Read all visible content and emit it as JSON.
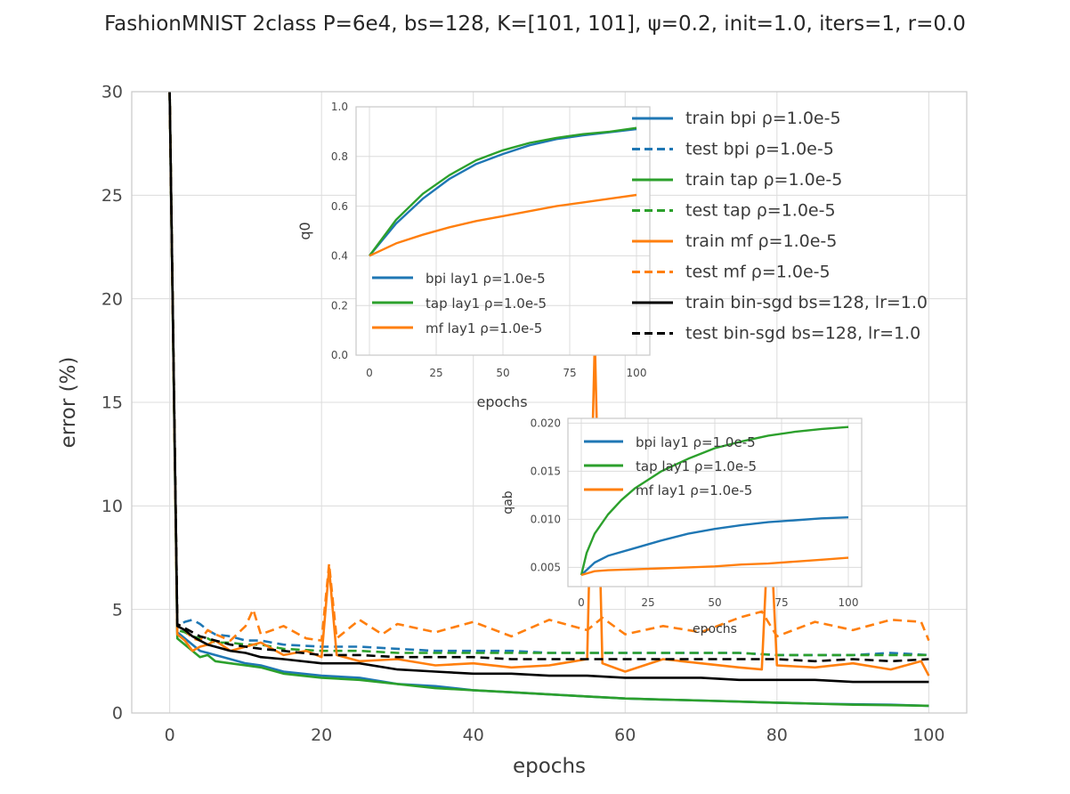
{
  "chart_data": [
    {
      "id": "main",
      "type": "line",
      "title": "FashionMNIST 2class P=6e4, bs=128, K=[101, 101], ψ=0.2, init=1.0, iters=1, r=0.0",
      "xlabel": "epochs",
      "ylabel": "error (%)",
      "xlim": [
        -5,
        105
      ],
      "ylim": [
        0,
        30
      ],
      "xticks": [
        0,
        20,
        40,
        60,
        80,
        100
      ],
      "yticks": [
        0,
        5,
        10,
        15,
        20,
        25,
        30
      ],
      "grid": true,
      "legend_position": "upper right",
      "series": [
        {
          "name": "train bpi ρ=1.0e-5",
          "color": "#1f77b4",
          "style": "solid",
          "x": [
            0,
            1,
            2,
            3,
            4,
            5,
            6,
            8,
            10,
            12,
            15,
            20,
            25,
            30,
            35,
            40,
            45,
            50,
            55,
            60,
            65,
            70,
            75,
            80,
            85,
            90,
            95,
            100
          ],
          "y": [
            30,
            3.9,
            3.6,
            3.3,
            3.0,
            2.9,
            2.8,
            2.6,
            2.4,
            2.3,
            2.0,
            1.8,
            1.7,
            1.4,
            1.3,
            1.1,
            1.0,
            0.9,
            0.8,
            0.7,
            0.65,
            0.6,
            0.55,
            0.5,
            0.45,
            0.42,
            0.4,
            0.35
          ]
        },
        {
          "name": "test bpi ρ=1.0e-5",
          "color": "#1f77b4",
          "style": "dashed",
          "x": [
            0,
            1,
            2,
            3,
            4,
            5,
            6,
            8,
            10,
            12,
            15,
            20,
            25,
            30,
            35,
            40,
            45,
            50,
            55,
            60,
            65,
            70,
            75,
            80,
            85,
            90,
            95,
            100
          ],
          "y": [
            30,
            4.2,
            4.4,
            4.5,
            4.3,
            4.0,
            3.8,
            3.7,
            3.5,
            3.5,
            3.3,
            3.2,
            3.2,
            3.1,
            3.0,
            3.0,
            3.0,
            2.9,
            2.9,
            2.9,
            2.9,
            2.9,
            2.9,
            2.8,
            2.8,
            2.8,
            2.9,
            2.8
          ]
        },
        {
          "name": "train tap ρ=1.0e-5",
          "color": "#2ca02c",
          "style": "solid",
          "x": [
            0,
            1,
            2,
            3,
            4,
            5,
            6,
            8,
            10,
            12,
            15,
            20,
            25,
            30,
            35,
            40,
            45,
            50,
            55,
            60,
            65,
            70,
            75,
            80,
            85,
            90,
            95,
            100
          ],
          "y": [
            30,
            3.6,
            3.3,
            3.0,
            2.7,
            2.8,
            2.5,
            2.4,
            2.3,
            2.2,
            1.9,
            1.7,
            1.6,
            1.4,
            1.2,
            1.1,
            1.0,
            0.9,
            0.8,
            0.7,
            0.65,
            0.6,
            0.55,
            0.5,
            0.45,
            0.4,
            0.38,
            0.35
          ]
        },
        {
          "name": "test tap ρ=1.0e-5",
          "color": "#2ca02c",
          "style": "dashed",
          "x": [
            0,
            1,
            2,
            3,
            4,
            5,
            6,
            8,
            10,
            12,
            15,
            20,
            25,
            30,
            35,
            40,
            45,
            50,
            55,
            60,
            65,
            70,
            75,
            80,
            85,
            90,
            95,
            100
          ],
          "y": [
            30,
            4.0,
            3.9,
            3.7,
            3.6,
            3.6,
            3.4,
            3.4,
            3.3,
            3.3,
            3.1,
            3.0,
            3.0,
            2.9,
            2.9,
            2.9,
            2.9,
            2.9,
            2.9,
            2.9,
            2.9,
            2.9,
            2.9,
            2.8,
            2.8,
            2.8,
            2.8,
            2.8
          ]
        },
        {
          "name": "train mf ρ=1.0e-5",
          "color": "#ff7f0e",
          "style": "solid",
          "x": [
            0,
            1,
            2,
            3,
            4,
            5,
            6,
            8,
            10,
            12,
            15,
            18,
            20,
            21,
            22,
            25,
            30,
            35,
            40,
            45,
            50,
            55,
            56,
            57,
            60,
            65,
            70,
            75,
            78,
            79,
            80,
            85,
            90,
            95,
            99,
            100
          ],
          "y": [
            30,
            3.8,
            3.5,
            3.0,
            3.2,
            3.3,
            3.5,
            3.0,
            3.2,
            3.4,
            2.8,
            3.0,
            2.7,
            7.0,
            2.8,
            2.5,
            2.6,
            2.3,
            2.4,
            2.2,
            2.3,
            2.6,
            18.0,
            2.4,
            2.0,
            2.6,
            2.4,
            2.2,
            2.1,
            10.0,
            2.3,
            2.2,
            2.4,
            2.1,
            2.5,
            1.8
          ]
        },
        {
          "name": "test mf ρ=1.0e-5",
          "color": "#ff7f0e",
          "style": "dashed",
          "x": [
            0,
            1,
            2,
            3,
            4,
            5,
            6,
            8,
            10,
            11,
            12,
            15,
            18,
            20,
            21,
            22,
            25,
            28,
            30,
            35,
            40,
            45,
            50,
            55,
            57,
            60,
            65,
            70,
            75,
            78,
            80,
            85,
            90,
            95,
            99,
            100
          ],
          "y": [
            30,
            4.3,
            4.0,
            3.6,
            3.5,
            4.0,
            3.8,
            3.5,
            4.2,
            5.0,
            3.8,
            4.2,
            3.6,
            3.5,
            7.2,
            3.6,
            4.5,
            3.8,
            4.3,
            3.9,
            4.4,
            3.7,
            4.5,
            4.0,
            4.6,
            3.8,
            4.2,
            3.9,
            4.6,
            4.9,
            3.7,
            4.4,
            4.0,
            4.5,
            4.4,
            3.5
          ]
        },
        {
          "name": "train bin-sgd bs=128, lr=1.0",
          "color": "#000000",
          "style": "solid",
          "x": [
            0,
            1,
            2,
            3,
            4,
            5,
            6,
            8,
            10,
            12,
            15,
            20,
            25,
            30,
            35,
            40,
            45,
            50,
            55,
            60,
            65,
            70,
            75,
            80,
            85,
            90,
            95,
            100
          ],
          "y": [
            30,
            4.2,
            4.0,
            3.7,
            3.5,
            3.3,
            3.2,
            3.0,
            2.9,
            2.7,
            2.6,
            2.4,
            2.4,
            2.1,
            2.0,
            1.9,
            1.9,
            1.8,
            1.8,
            1.7,
            1.7,
            1.7,
            1.6,
            1.6,
            1.6,
            1.5,
            1.5,
            1.5
          ]
        },
        {
          "name": "test bin-sgd bs=128, lr=1.0",
          "color": "#000000",
          "style": "dashed",
          "x": [
            0,
            1,
            2,
            3,
            4,
            5,
            6,
            8,
            10,
            12,
            15,
            20,
            25,
            30,
            35,
            40,
            45,
            50,
            55,
            60,
            65,
            70,
            75,
            80,
            85,
            90,
            95,
            100
          ],
          "y": [
            30,
            4.3,
            4.1,
            3.9,
            3.7,
            3.6,
            3.5,
            3.3,
            3.2,
            3.1,
            3.0,
            2.8,
            2.8,
            2.7,
            2.7,
            2.7,
            2.6,
            2.6,
            2.6,
            2.6,
            2.6,
            2.6,
            2.6,
            2.6,
            2.5,
            2.6,
            2.5,
            2.6
          ]
        }
      ]
    },
    {
      "id": "inset1",
      "type": "line",
      "xlabel": "epochs",
      "ylabel": "q0",
      "xlim": [
        -5,
        105
      ],
      "ylim": [
        0.0,
        1.0
      ],
      "xticks": [
        0,
        25,
        50,
        75,
        100
      ],
      "yticks": [
        0.0,
        0.2,
        0.4,
        0.6,
        0.8,
        1.0
      ],
      "xtick_labels": [
        "0",
        "25",
        "50",
        "75",
        "100"
      ],
      "ytick_labels": [
        "0.0",
        "0.2",
        "0.4",
        "0.6",
        "0.8",
        "1.0"
      ],
      "grid": true,
      "legend_position": "lower left",
      "series": [
        {
          "name": "bpi lay1 ρ=1.0e-5",
          "color": "#1f77b4",
          "x": [
            0,
            10,
            20,
            30,
            40,
            50,
            60,
            70,
            80,
            90,
            100
          ],
          "y": [
            0.4,
            0.53,
            0.63,
            0.71,
            0.77,
            0.81,
            0.845,
            0.87,
            0.885,
            0.898,
            0.91
          ]
        },
        {
          "name": "tap lay1 ρ=1.0e-5",
          "color": "#2ca02c",
          "x": [
            0,
            10,
            20,
            30,
            40,
            50,
            60,
            70,
            80,
            90,
            100
          ],
          "y": [
            0.4,
            0.545,
            0.65,
            0.725,
            0.785,
            0.825,
            0.855,
            0.875,
            0.89,
            0.9,
            0.915
          ]
        },
        {
          "name": "mf lay1 ρ=1.0e-5",
          "color": "#ff7f0e",
          "x": [
            0,
            10,
            20,
            30,
            40,
            50,
            60,
            70,
            80,
            90,
            100
          ],
          "y": [
            0.4,
            0.45,
            0.485,
            0.515,
            0.54,
            0.56,
            0.58,
            0.6,
            0.615,
            0.63,
            0.645
          ]
        }
      ]
    },
    {
      "id": "inset2",
      "type": "line",
      "xlabel": "epochs",
      "ylabel": "qab",
      "xlim": [
        -5,
        105
      ],
      "ylim": [
        0.003,
        0.0205
      ],
      "xticks": [
        0,
        25,
        50,
        75,
        100
      ],
      "yticks": [
        0.005,
        0.01,
        0.015,
        0.02
      ],
      "xtick_labels": [
        "0",
        "25",
        "50",
        "75",
        "100"
      ],
      "ytick_labels": [
        "0.005",
        "0.010",
        "0.015",
        "0.020"
      ],
      "grid": true,
      "legend_position": "upper left",
      "series": [
        {
          "name": "bpi lay1 ρ=1.0e-5",
          "color": "#1f77b4",
          "x": [
            0,
            5,
            10,
            20,
            30,
            40,
            50,
            60,
            70,
            80,
            90,
            100
          ],
          "y": [
            0.0042,
            0.0055,
            0.0062,
            0.007,
            0.0078,
            0.0085,
            0.009,
            0.0094,
            0.0097,
            0.0099,
            0.0101,
            0.0102
          ]
        },
        {
          "name": "tap lay1 ρ=1.0e-5",
          "color": "#2ca02c",
          "x": [
            0,
            2,
            5,
            10,
            15,
            20,
            30,
            40,
            50,
            60,
            70,
            80,
            90,
            100
          ],
          "y": [
            0.0042,
            0.0065,
            0.0085,
            0.0105,
            0.012,
            0.0132,
            0.015,
            0.0163,
            0.0174,
            0.0181,
            0.0187,
            0.0191,
            0.0194,
            0.0196
          ]
        },
        {
          "name": "mf lay1 ρ=1.0e-5",
          "color": "#ff7f0e",
          "x": [
            0,
            5,
            10,
            20,
            30,
            40,
            50,
            60,
            70,
            80,
            90,
            100
          ],
          "y": [
            0.0042,
            0.0046,
            0.0047,
            0.0048,
            0.0049,
            0.005,
            0.0051,
            0.0053,
            0.0054,
            0.0056,
            0.0058,
            0.006
          ]
        }
      ]
    }
  ]
}
